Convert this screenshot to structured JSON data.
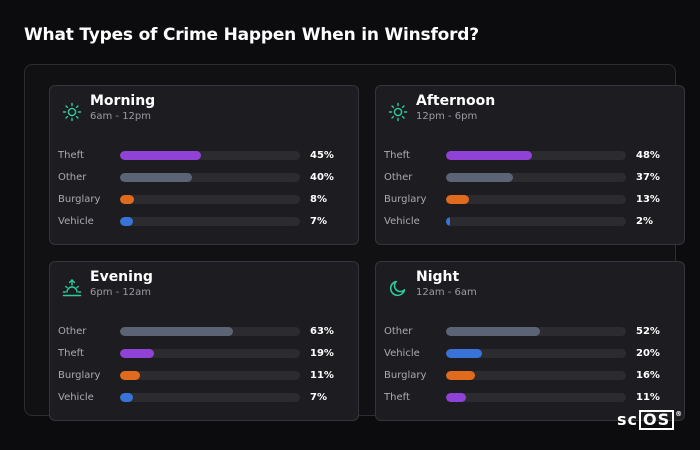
{
  "page": {
    "title": "What Types of Crime Happen When in Winsford?"
  },
  "colors": {
    "Theft": "#9142d6",
    "Other": "#5b6475",
    "Burglary": "#e06b1c",
    "Vehicle": "#3a73d8",
    "icon": "#2ecc9a"
  },
  "chart_data": [
    {
      "type": "bar",
      "title": "Morning",
      "subtitle": "6am - 12pm",
      "icon": "sun-icon",
      "series": [
        {
          "category": "Theft",
          "value": 45,
          "label": "45%"
        },
        {
          "category": "Other",
          "value": 40,
          "label": "40%"
        },
        {
          "category": "Burglary",
          "value": 8,
          "label": "8%"
        },
        {
          "category": "Vehicle",
          "value": 7,
          "label": "7%"
        }
      ]
    },
    {
      "type": "bar",
      "title": "Afternoon",
      "subtitle": "12pm - 6pm",
      "icon": "sun-icon",
      "series": [
        {
          "category": "Theft",
          "value": 48,
          "label": "48%"
        },
        {
          "category": "Other",
          "value": 37,
          "label": "37%"
        },
        {
          "category": "Burglary",
          "value": 13,
          "label": "13%"
        },
        {
          "category": "Vehicle",
          "value": 2,
          "label": "2%"
        }
      ]
    },
    {
      "type": "bar",
      "title": "Evening",
      "subtitle": "6pm - 12am",
      "icon": "sunset-icon",
      "series": [
        {
          "category": "Other",
          "value": 63,
          "label": "63%"
        },
        {
          "category": "Theft",
          "value": 19,
          "label": "19%"
        },
        {
          "category": "Burglary",
          "value": 11,
          "label": "11%"
        },
        {
          "category": "Vehicle",
          "value": 7,
          "label": "7%"
        }
      ]
    },
    {
      "type": "bar",
      "title": "Night",
      "subtitle": "12am - 6am",
      "icon": "moon-icon",
      "series": [
        {
          "category": "Other",
          "value": 52,
          "label": "52%"
        },
        {
          "category": "Vehicle",
          "value": 20,
          "label": "20%"
        },
        {
          "category": "Burglary",
          "value": 16,
          "label": "16%"
        },
        {
          "category": "Theft",
          "value": 11,
          "label": "11%"
        }
      ]
    }
  ],
  "logo": {
    "text_left": "sc",
    "text_boxed": "OS",
    "mark": "®"
  }
}
